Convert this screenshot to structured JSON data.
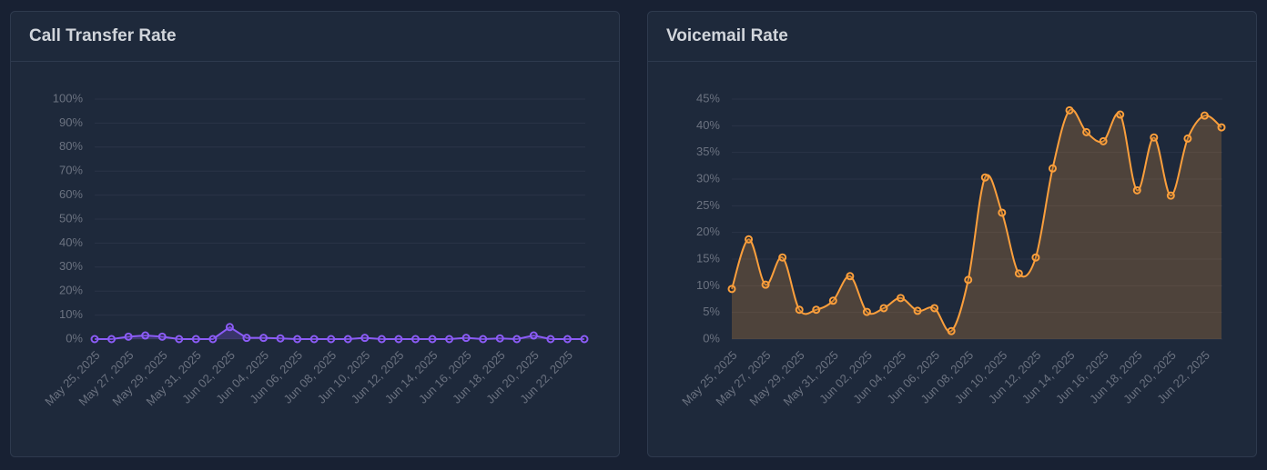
{
  "chart_data": [
    {
      "type": "line",
      "title": "Call Transfer Rate",
      "categories": [
        "May 25, 2025",
        null,
        "May 27, 2025",
        null,
        "May 29, 2025",
        null,
        "May 31, 2025",
        null,
        "Jun 02, 2025",
        null,
        "Jun 04, 2025",
        null,
        "Jun 06, 2025",
        null,
        "Jun 08, 2025",
        null,
        "Jun 10, 2025",
        null,
        "Jun 12, 2025",
        null,
        "Jun 14, 2025",
        null,
        "Jun 16, 2025",
        null,
        "Jun 18, 2025",
        null,
        "Jun 20, 2025",
        null,
        "Jun 22, 2025",
        null
      ],
      "values": [
        0,
        0,
        1,
        1.5,
        1,
        0,
        0,
        0,
        5,
        0.5,
        0.5,
        0.3,
        0,
        0,
        0,
        0,
        0.5,
        0,
        0,
        0,
        0,
        0,
        0.5,
        0,
        0.3,
        0,
        1.5,
        0,
        0,
        0
      ],
      "color": "#8b5cf6",
      "fill": "rgba(139,92,246,0.25)",
      "smooth": false,
      "ylim": [
        0,
        100
      ],
      "yticks": [
        {
          "value": 0,
          "label": "0%"
        },
        {
          "value": 10,
          "label": "10%"
        },
        {
          "value": 20,
          "label": "20%"
        },
        {
          "value": 30,
          "label": "30%"
        },
        {
          "value": 40,
          "label": "40%"
        },
        {
          "value": 50,
          "label": "50%"
        },
        {
          "value": 60,
          "label": "60%"
        },
        {
          "value": 70,
          "label": "70%"
        },
        {
          "value": 80,
          "label": "80%"
        },
        {
          "value": 90,
          "label": "90%"
        },
        {
          "value": 100,
          "label": "100%"
        }
      ],
      "grid": true
    },
    {
      "type": "line",
      "title": "Voicemail Rate",
      "categories": [
        "May 25, 2025",
        null,
        "May 27, 2025",
        null,
        "May 29, 2025",
        null,
        "May 31, 2025",
        null,
        "Jun 02, 2025",
        null,
        "Jun 04, 2025",
        null,
        "Jun 06, 2025",
        null,
        "Jun 08, 2025",
        null,
        "Jun 10, 2025",
        null,
        "Jun 12, 2025",
        null,
        "Jun 14, 2025",
        null,
        "Jun 16, 2025",
        null,
        "Jun 18, 2025",
        null,
        "Jun 20, 2025",
        null,
        "Jun 22, 2025",
        null
      ],
      "values": [
        9.4,
        18.7,
        10.2,
        15.3,
        5.5,
        5.5,
        7.2,
        11.8,
        5.1,
        5.8,
        7.7,
        5.3,
        5.8,
        1.5,
        11.1,
        30.3,
        23.7,
        12.3,
        15.3,
        32.0,
        42.9,
        38.8,
        37.1,
        42.1,
        27.9,
        37.8,
        26.9,
        37.6,
        41.9,
        39.7
      ],
      "color": "#fb9f3c",
      "fill": "rgba(251,159,60,0.22)",
      "smooth": true,
      "ylim": [
        0,
        45
      ],
      "yticks": [
        {
          "value": 0,
          "label": "0%"
        },
        {
          "value": 5,
          "label": "5%"
        },
        {
          "value": 10,
          "label": "10%"
        },
        {
          "value": 15,
          "label": "15%"
        },
        {
          "value": 20,
          "label": "20%"
        },
        {
          "value": 25,
          "label": "25%"
        },
        {
          "value": 30,
          "label": "30%"
        },
        {
          "value": 35,
          "label": "35%"
        },
        {
          "value": 40,
          "label": "40%"
        },
        {
          "value": 45,
          "label": "45%"
        }
      ],
      "grid": true
    }
  ]
}
